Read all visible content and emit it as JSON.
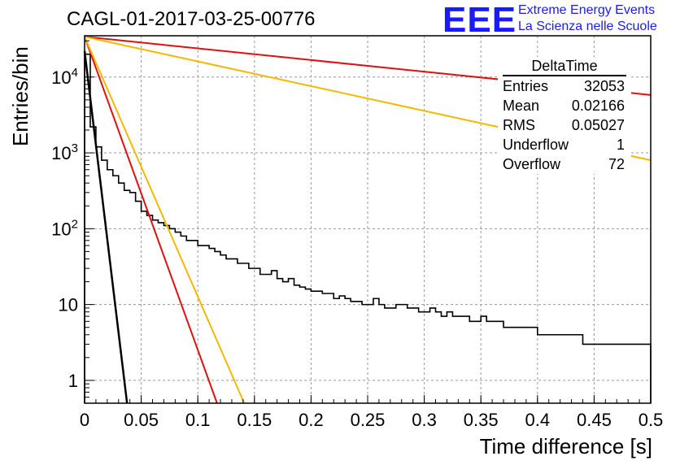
{
  "title": "CAGL-01-2017-03-25-00776",
  "logo": {
    "mark": "EEE",
    "line1": "Extreme Energy Events",
    "line2": "La Scienza nelle Scuole",
    "color": "#1a1aff"
  },
  "stats": {
    "title": "DeltaTime",
    "rows": [
      {
        "label": "Entries",
        "value": "32053"
      },
      {
        "label": "Mean",
        "value": "0.02166"
      },
      {
        "label": "RMS",
        "value": "0.05027"
      },
      {
        "label": "Underflow",
        "value": "1"
      },
      {
        "label": "Overflow",
        "value": "72"
      }
    ]
  },
  "chart_data": {
    "type": "histogram",
    "xlabel": "Time difference [s]",
    "ylabel": "Entries/bin",
    "xlim": [
      0,
      0.5
    ],
    "ylim": [
      0.5,
      35000
    ],
    "y_scale": "log",
    "grid": true,
    "x_ticks": [
      "0",
      "0.05",
      "0.1",
      "0.15",
      "0.2",
      "0.25",
      "0.3",
      "0.35",
      "0.4",
      "0.45",
      "0.5"
    ],
    "y_ticks": [
      {
        "value": 1,
        "label": "1"
      },
      {
        "value": 10,
        "label": "10"
      },
      {
        "value": 100,
        "label": "10^2"
      },
      {
        "value": 1000,
        "label": "10^3"
      },
      {
        "value": 10000,
        "label": "10^4"
      }
    ],
    "bin_width": 0.005,
    "histogram": [
      20000,
      2200,
      1200,
      800,
      600,
      500,
      400,
      320,
      300,
      230,
      170,
      150,
      130,
      120,
      110,
      100,
      90,
      80,
      70,
      70,
      60,
      60,
      55,
      50,
      45,
      40,
      40,
      35,
      35,
      30,
      30,
      25,
      25,
      28,
      22,
      20,
      22,
      18,
      17,
      16,
      15,
      15,
      14,
      14,
      12,
      13,
      12,
      11,
      11,
      10,
      10,
      12,
      10,
      9,
      9,
      10,
      10,
      9,
      9,
      8,
      8,
      9,
      8,
      7,
      8,
      7,
      7,
      7,
      6,
      6,
      7,
      6,
      6,
      6,
      5,
      5,
      5,
      5,
      5,
      5,
      4,
      4,
      4,
      4,
      4,
      4,
      4,
      4,
      3,
      3,
      3,
      3,
      3,
      3,
      3,
      3,
      3,
      3,
      3,
      3
    ],
    "exponential_fits": [
      {
        "color": "#000000",
        "width": 2.5,
        "x": [
          0,
          0.0375
        ],
        "y": [
          22000,
          0.5
        ]
      },
      {
        "color": "#e01010",
        "width": 2.0,
        "x": [
          0,
          0.117
        ],
        "y": [
          34000,
          0.5
        ]
      },
      {
        "color": "#f5b800",
        "width": 2.0,
        "x": [
          0,
          0.141
        ],
        "y": [
          34000,
          0.5
        ]
      },
      {
        "color": "#e01010",
        "width": 2.0,
        "x": [
          0,
          0.5
        ],
        "y": [
          34000,
          5800
        ]
      },
      {
        "color": "#f5b800",
        "width": 2.0,
        "x": [
          0,
          0.5
        ],
        "y": [
          34000,
          800
        ]
      }
    ]
  }
}
